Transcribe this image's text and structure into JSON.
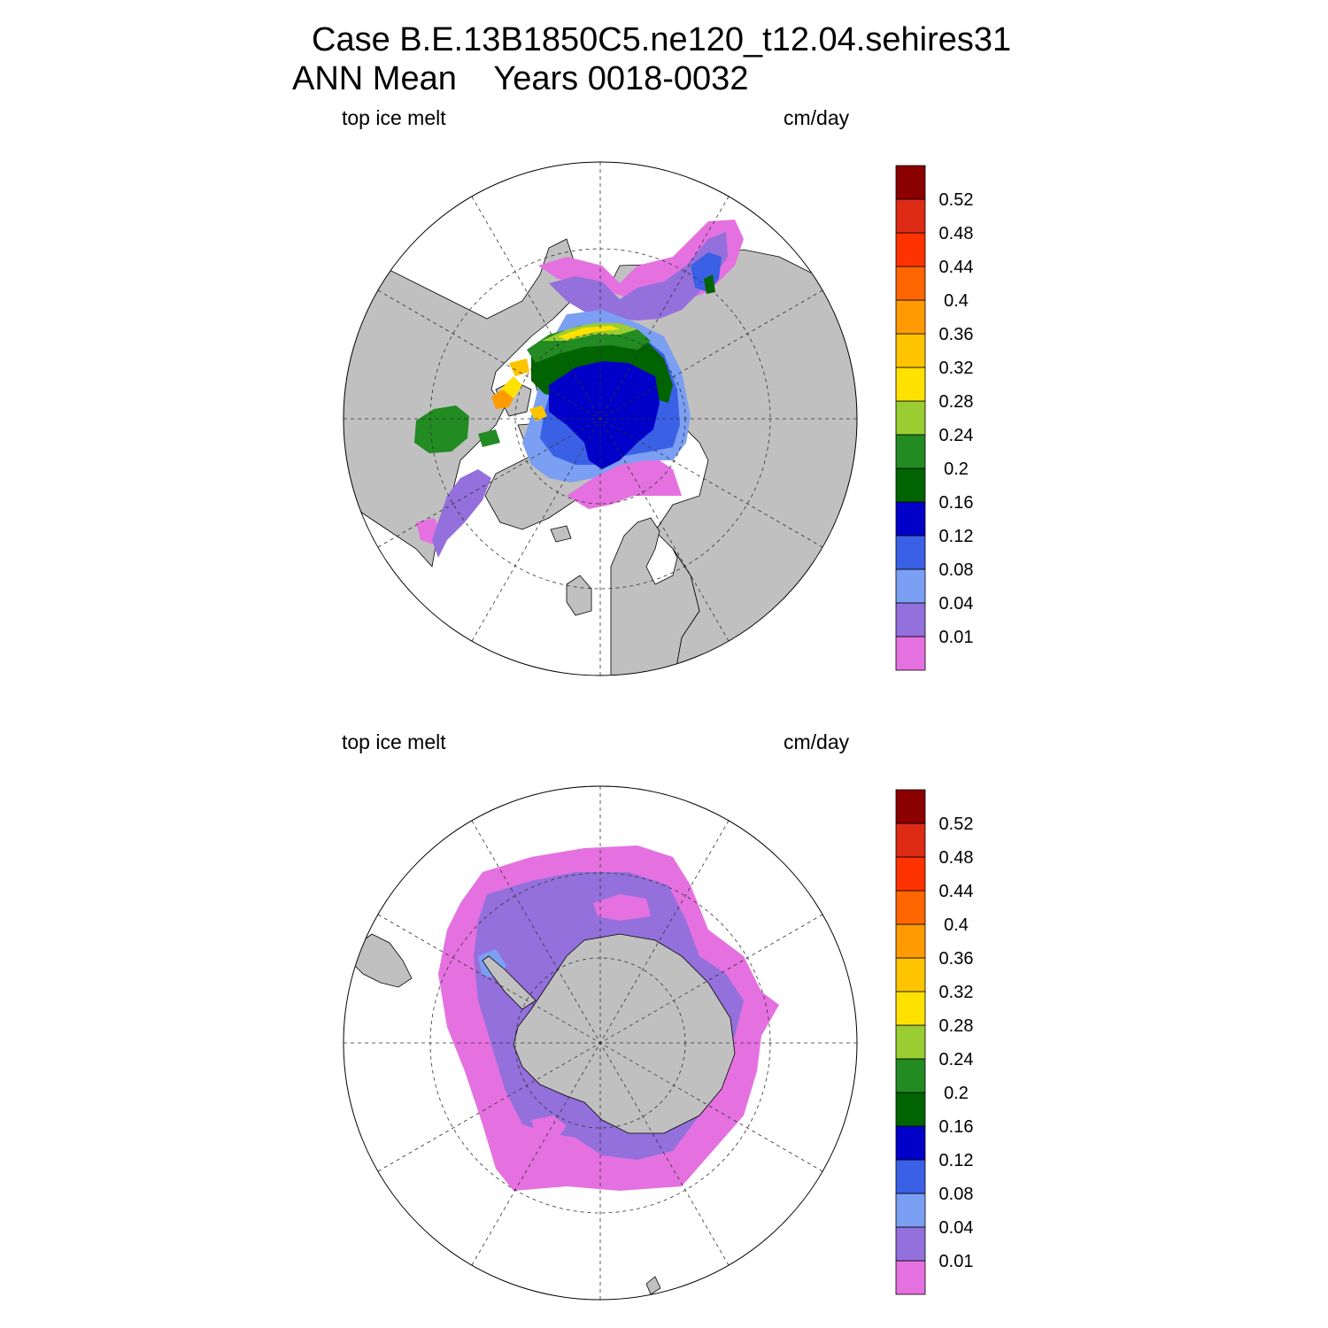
{
  "header": {
    "title_line1": "Case B.E.13B1850C5.ne120_t12.04.sehires31",
    "title_line2": "ANN Mean    Years 0018-0032"
  },
  "colorbar": {
    "levels": [
      "0.01",
      "0.04",
      "0.08",
      "0.12",
      "0.16",
      "0.2",
      "0.24",
      "0.28",
      "0.32",
      "0.36",
      "0.4",
      "0.44",
      "0.48",
      "0.52"
    ],
    "colors": [
      "#e571e0",
      "#9370db",
      "#7b9ff2",
      "#3a60e6",
      "#0000c8",
      "#006400",
      "#228b22",
      "#9acd32",
      "#ffe100",
      "#ffc400",
      "#ff9a00",
      "#ff6600",
      "#ff3300",
      "#dc2c15",
      "#8b0000"
    ]
  },
  "colors": {
    "land": "#c0c0c0",
    "ocean": "#ffffff",
    "outline": "#000000"
  },
  "panels": [
    {
      "id": "north",
      "variable": "top ice melt",
      "units": "cm/day",
      "hemisphere": "Northern"
    },
    {
      "id": "south",
      "variable": "top ice melt",
      "units": "cm/day",
      "hemisphere": "Southern"
    }
  ]
}
